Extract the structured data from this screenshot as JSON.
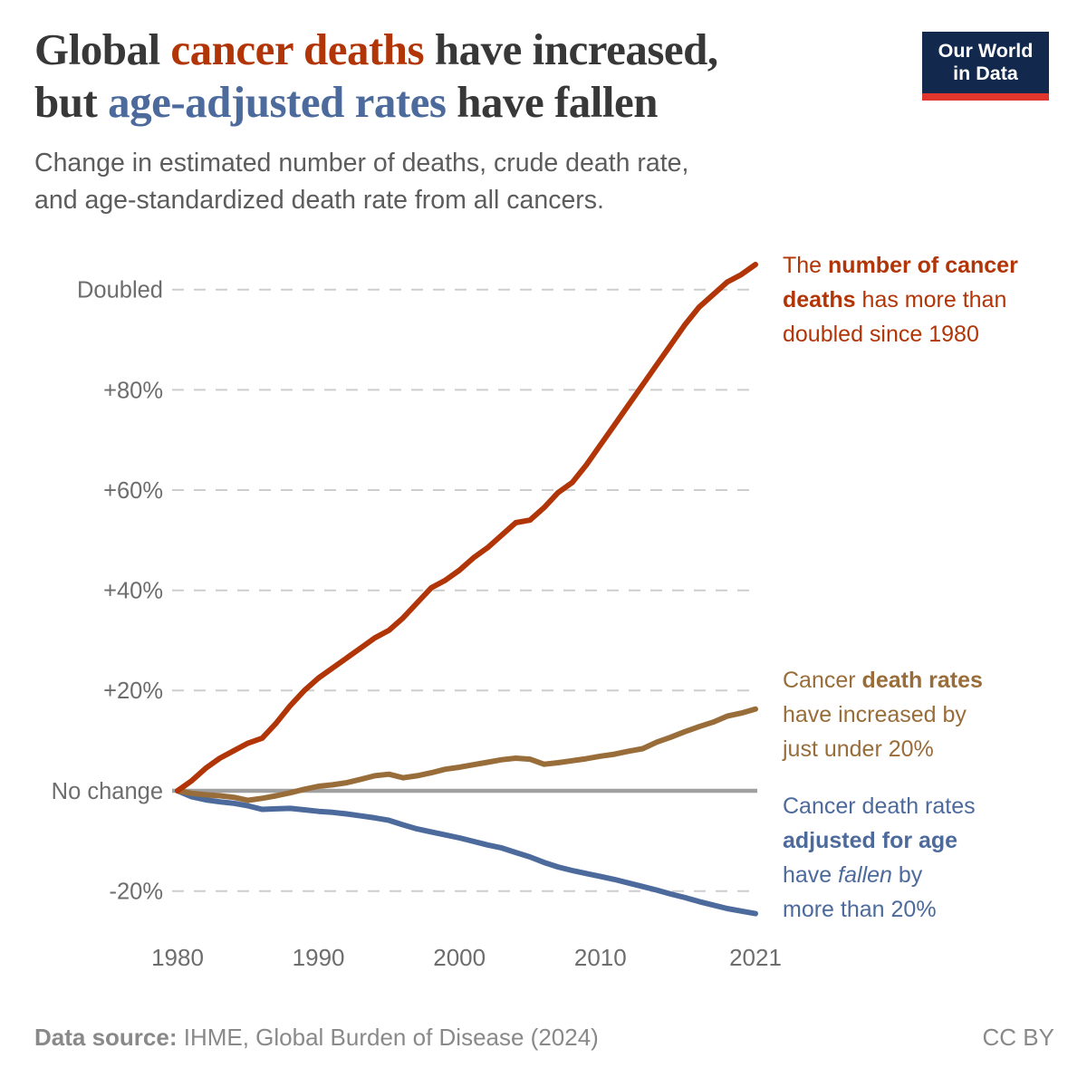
{
  "header": {
    "title": {
      "l1a": "Global ",
      "l1b": "cancer deaths",
      "l1c": " have increased,",
      "l2a": "but ",
      "l2b": "age-adjusted rates",
      "l2c": " have fallen"
    },
    "subtitle": "Change in estimated number of deaths, crude death rate,\nand age-standardized death rate from all cancers."
  },
  "logo": {
    "line1": "Our World",
    "line2": "in Data"
  },
  "colors": {
    "deaths_red": "#b13507",
    "crude_brown": "#996d39",
    "age_blue": "#4c6a9c",
    "title_dark": "#383838",
    "subtitle_gray": "#5c5c5c",
    "tick_gray": "#6d6d6d",
    "grid_gray": "#cdcdcd",
    "zero_line_gray": "#a0a0a0",
    "footer_gray": "#898989",
    "logo_navy": "#12294d",
    "logo_red": "#e0362d"
  },
  "annotations": [
    {
      "key": "deaths-number",
      "color_key": "deaths_red",
      "segments": [
        {
          "text": "The "
        },
        {
          "text": "number of cancer\ndeaths",
          "bold": true
        },
        {
          "text": " has more than\ndoubled since 1980"
        }
      ]
    },
    {
      "key": "crude-rate",
      "color_key": "crude_brown",
      "segments": [
        {
          "text": "Cancer "
        },
        {
          "text": "death rates",
          "bold": true
        },
        {
          "text": "\nhave increased by\njust under 20%"
        }
      ]
    },
    {
      "key": "age-standardized-rate",
      "color_key": "age_blue",
      "segments": [
        {
          "text": "Cancer death rates\n"
        },
        {
          "text": "adjusted for age",
          "bold": true
        },
        {
          "text": "\nhave "
        },
        {
          "text": "fallen",
          "italic": true
        },
        {
          "text": " by\nmore than 20%"
        }
      ]
    }
  ],
  "chart_data": {
    "type": "line",
    "title": "Global cancer deaths have increased, but age-adjusted rates have fallen",
    "unit": "% change relative to 1980",
    "x_start": 1980,
    "x_end": 2021,
    "years": [
      1980,
      1981,
      1982,
      1983,
      1984,
      1985,
      1986,
      1987,
      1988,
      1989,
      1990,
      1991,
      1992,
      1993,
      1994,
      1995,
      1996,
      1997,
      1998,
      1999,
      2000,
      2001,
      2002,
      2003,
      2004,
      2005,
      2006,
      2007,
      2008,
      2009,
      2010,
      2011,
      2012,
      2013,
      2014,
      2015,
      2016,
      2017,
      2018,
      2019,
      2020,
      2021
    ],
    "series": [
      {
        "key": "deaths-number",
        "name": "Number of cancer deaths",
        "color_key": "deaths_red",
        "values": [
          0,
          2,
          4.5,
          6.5,
          8,
          9.5,
          10.5,
          13.5,
          17,
          20,
          22.5,
          24.5,
          26.5,
          28.5,
          30.5,
          32,
          34.5,
          37.5,
          40.5,
          42,
          44,
          46.5,
          48.5,
          51,
          53.5,
          54,
          56.5,
          59.5,
          61.5,
          65,
          69,
          73,
          77,
          81,
          85,
          89,
          93,
          96.5,
          99,
          101.5,
          103,
          105
        ]
      },
      {
        "key": "crude-rate",
        "name": "Crude death rate",
        "color_key": "crude_brown",
        "values": [
          0,
          -0.5,
          -0.8,
          -1,
          -1.3,
          -1.9,
          -1.5,
          -1,
          -0.4,
          0.3,
          0.9,
          1.2,
          1.6,
          2.3,
          3,
          3.3,
          2.6,
          3,
          3.6,
          4.3,
          4.7,
          5.2,
          5.7,
          6.2,
          6.5,
          6.3,
          5.3,
          5.6,
          6,
          6.4,
          6.9,
          7.3,
          7.9,
          8.4,
          9.7,
          10.7,
          11.8,
          12.8,
          13.7,
          14.9,
          15.5,
          16.3
        ]
      },
      {
        "key": "age-standardized-rate",
        "name": "Age-standardized death rate",
        "color_key": "age_blue",
        "values": [
          0,
          -1.2,
          -1.8,
          -2.2,
          -2.5,
          -3,
          -3.7,
          -3.6,
          -3.5,
          -3.8,
          -4.1,
          -4.3,
          -4.6,
          -5,
          -5.4,
          -5.9,
          -6.8,
          -7.6,
          -8.2,
          -8.8,
          -9.4,
          -10.1,
          -10.8,
          -11.4,
          -12.3,
          -13.2,
          -14.3,
          -15.2,
          -15.9,
          -16.5,
          -17.1,
          -17.7,
          -18.4,
          -19.1,
          -19.8,
          -20.6,
          -21.3,
          -22.1,
          -22.8,
          -23.5,
          -24,
          -24.5
        ]
      }
    ],
    "ylim": [
      -26,
      106
    ],
    "y_ticks": [
      {
        "label": "Doubled",
        "value": 100
      },
      {
        "label": "+80%",
        "value": 80
      },
      {
        "label": "+60%",
        "value": 60
      },
      {
        "label": "+40%",
        "value": 40
      },
      {
        "label": "+20%",
        "value": 20
      },
      {
        "label": "No change",
        "value": 0
      },
      {
        "label": "-20%",
        "value": -20
      }
    ],
    "x_ticks": [
      1980,
      1990,
      2000,
      2010,
      2021
    ],
    "grid": "horizontal-dashed",
    "zero_line": true,
    "legend_position": "right-annotations"
  },
  "footer": {
    "source_label": "Data source:",
    "source": " IHME, Global Burden of Disease (2024)",
    "license": "CC BY"
  }
}
